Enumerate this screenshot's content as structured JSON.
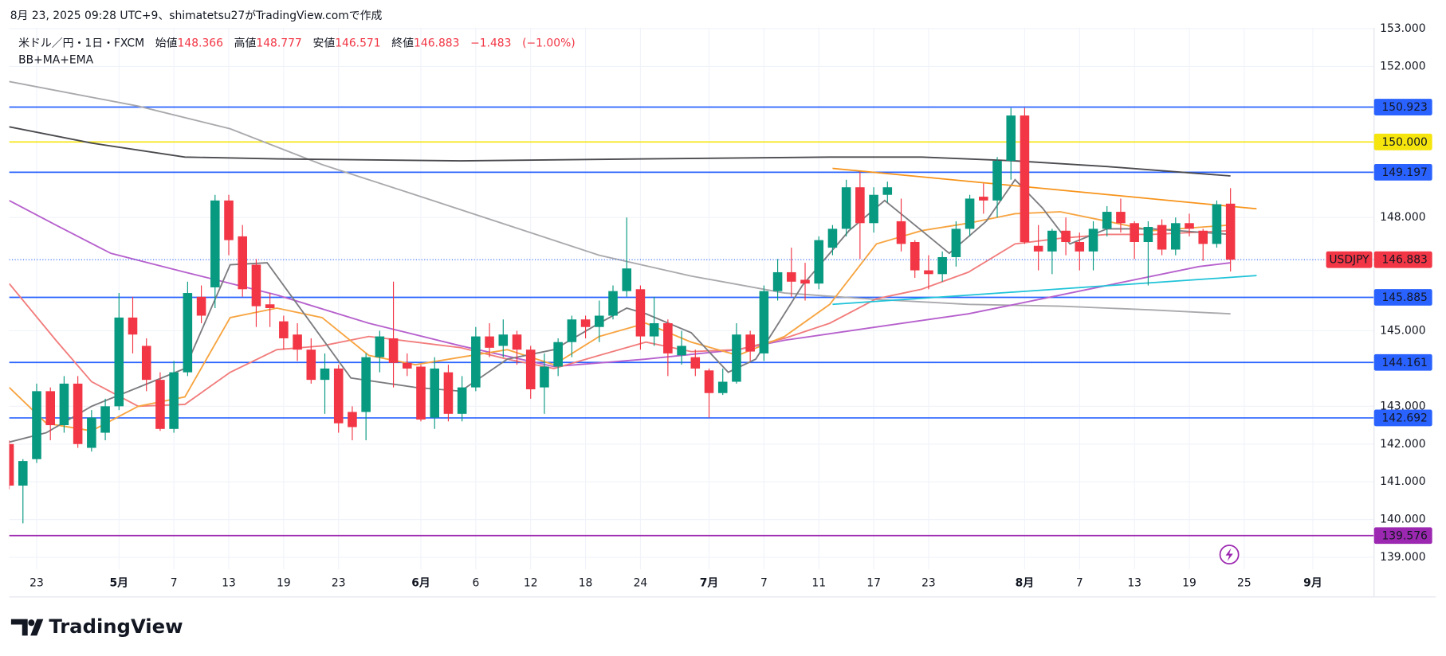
{
  "header": {
    "created": "8月 23, 2025 09:28 UTC+9、shimatetsu27がTradingView.comで作成"
  },
  "footer": {
    "brand": "TradingView"
  },
  "chart_data": {
    "type": "candlestick",
    "symbol_title": "米ドル／円・1日・FXCM",
    "indicators": "BB+MA+EMA",
    "ohlc": {
      "open_label": "始値",
      "open": 148.366,
      "high_label": "高値",
      "high": 148.777,
      "low_label": "安値",
      "low": 146.571,
      "close_label": "終値",
      "close": 146.883,
      "change": {
        "value": -1.483,
        "label": "−1.483"
      },
      "change_pct": {
        "value": -1.0,
        "label": "(−1.00%)"
      }
    },
    "categories": [
      null,
      null,
      "23",
      null,
      null,
      null,
      null,
      null,
      "5月",
      null,
      null,
      null,
      "7",
      null,
      null,
      null,
      "13",
      null,
      null,
      null,
      "19",
      null,
      null,
      null,
      "23",
      null,
      null,
      null,
      null,
      null,
      "6月",
      null,
      null,
      null,
      "6",
      null,
      null,
      null,
      "12",
      null,
      null,
      null,
      "18",
      null,
      null,
      null,
      "24",
      null,
      null,
      null,
      null,
      "7月",
      null,
      null,
      null,
      "7",
      null,
      null,
      null,
      "11",
      null,
      null,
      null,
      "17",
      null,
      null,
      null,
      "23",
      null,
      null,
      null,
      null,
      null,
      null,
      "8月",
      null,
      null,
      null,
      "7",
      null,
      null,
      null,
      "13",
      null,
      null,
      null,
      "19",
      null,
      null,
      null,
      "25",
      null,
      null,
      null,
      null,
      "9月"
    ],
    "open": [
      142.0,
      140.9,
      141.6,
      143.4,
      142.5,
      143.6,
      141.9,
      142.3,
      143.0,
      145.35,
      144.6,
      143.7,
      142.4,
      143.9,
      145.9,
      146.15,
      148.45,
      147.5,
      146.75,
      145.7,
      145.25,
      144.9,
      144.5,
      143.7,
      144.0,
      142.85,
      142.85,
      144.3,
      144.8,
      144.15,
      144.05,
      142.7,
      143.9,
      142.8,
      143.5,
      144.85,
      144.6,
      144.9,
      144.5,
      143.5,
      144.05,
      144.7,
      145.3,
      145.1,
      145.4,
      146.05,
      146.1,
      144.85,
      145.2,
      144.35,
      144.3,
      143.95,
      143.35,
      143.65,
      144.9,
      144.4,
      146.05,
      146.55,
      146.35,
      146.25,
      147.2,
      147.7,
      148.8,
      147.85,
      148.6,
      147.9,
      147.35,
      146.6,
      146.5,
      146.95,
      147.7,
      148.55,
      148.45,
      149.5,
      150.7,
      147.25,
      147.1,
      147.65,
      147.35,
      147.1,
      147.7,
      148.15,
      147.85,
      147.35,
      147.8,
      147.15,
      147.85,
      147.65,
      147.3,
      148.366,
      null,
      null,
      null,
      null,
      null,
      null
    ],
    "high": [
      142.1,
      141.6,
      143.6,
      143.5,
      143.8,
      143.8,
      142.9,
      143.2,
      146.0,
      145.9,
      144.8,
      143.9,
      144.2,
      146.3,
      146.2,
      148.6,
      148.6,
      147.8,
      146.9,
      146.0,
      145.4,
      145.2,
      144.8,
      144.4,
      144.1,
      143.0,
      144.4,
      145.0,
      146.3,
      144.4,
      144.1,
      144.3,
      144.1,
      143.8,
      145.1,
      145.2,
      145.3,
      145.0,
      144.6,
      144.4,
      144.8,
      145.4,
      145.4,
      145.8,
      146.2,
      148.0,
      146.2,
      145.9,
      145.3,
      145.0,
      144.5,
      144.0,
      144.0,
      145.2,
      145.0,
      146.2,
      146.9,
      147.2,
      146.8,
      147.5,
      147.8,
      149.0,
      149.2,
      148.8,
      148.95,
      148.5,
      147.4,
      147.0,
      147.1,
      147.9,
      148.6,
      148.9,
      149.6,
      150.9,
      150.9,
      147.8,
      147.7,
      148.0,
      147.6,
      147.9,
      148.3,
      148.5,
      147.9,
      147.9,
      147.95,
      148.0,
      148.1,
      147.7,
      148.45,
      148.777,
      null,
      null,
      null,
      null,
      null,
      null
    ],
    "low": [
      140.8,
      139.9,
      141.5,
      142.1,
      142.3,
      141.9,
      141.8,
      142.1,
      142.9,
      144.4,
      143.4,
      142.35,
      142.3,
      143.8,
      145.2,
      145.6,
      147.0,
      145.9,
      145.1,
      145.1,
      144.5,
      144.2,
      143.6,
      142.8,
      142.3,
      142.1,
      142.1,
      143.9,
      143.5,
      143.8,
      142.6,
      142.4,
      142.6,
      142.6,
      143.4,
      144.3,
      144.3,
      144.1,
      143.2,
      142.8,
      143.8,
      144.3,
      144.8,
      144.7,
      145.3,
      145.9,
      144.5,
      144.6,
      143.8,
      144.1,
      143.8,
      142.7,
      143.3,
      143.6,
      144.2,
      144.2,
      145.8,
      145.9,
      145.8,
      146.1,
      147.0,
      147.5,
      146.9,
      147.6,
      148.4,
      147.1,
      146.4,
      146.1,
      146.3,
      146.7,
      147.5,
      148.1,
      148.0,
      149.0,
      147.3,
      146.6,
      146.5,
      147.0,
      146.6,
      146.6,
      147.5,
      147.6,
      146.9,
      146.2,
      147.0,
      147.0,
      147.5,
      146.85,
      147.2,
      146.571,
      null,
      null,
      null,
      null,
      null,
      null
    ],
    "close": [
      140.9,
      141.55,
      143.4,
      142.5,
      143.6,
      142.0,
      142.7,
      143.0,
      145.35,
      144.9,
      143.7,
      142.4,
      143.9,
      146.0,
      145.4,
      148.45,
      147.4,
      146.1,
      145.65,
      145.6,
      144.8,
      144.5,
      143.7,
      144.0,
      142.55,
      142.45,
      144.3,
      144.85,
      144.15,
      144.0,
      142.65,
      144.0,
      142.8,
      143.5,
      144.85,
      144.55,
      144.9,
      144.5,
      143.45,
      144.05,
      144.7,
      145.3,
      145.1,
      145.4,
      146.05,
      146.65,
      144.85,
      145.2,
      144.4,
      144.6,
      144.0,
      143.35,
      143.65,
      144.9,
      144.45,
      146.05,
      146.55,
      146.3,
      146.25,
      147.4,
      147.7,
      148.8,
      147.85,
      148.6,
      148.8,
      147.3,
      146.6,
      146.5,
      146.95,
      147.7,
      148.5,
      148.45,
      149.5,
      150.7,
      147.35,
      147.1,
      147.65,
      147.35,
      147.1,
      147.7,
      148.15,
      147.85,
      147.35,
      147.75,
      147.15,
      147.85,
      147.7,
      147.3,
      148.35,
      146.883,
      null,
      null,
      null,
      null,
      null,
      null
    ],
    "up_color": "#089981",
    "down_color": "#f23645",
    "overlays": [
      {
        "color": "#a9a9ad",
        "x": [
          0,
          9.4,
          16.1,
          22.8,
          29.6,
          36.3,
          43,
          49.7,
          56.5,
          63.2,
          69.9,
          76.6,
          83.3,
          89
        ],
        "values": [
          151.6,
          150.95,
          150.35,
          149.4,
          148.6,
          147.8,
          147.0,
          146.45,
          146.0,
          145.83,
          145.7,
          145.65,
          145.55,
          145.45
        ]
      },
      {
        "color": "#4a4a4f",
        "x": [
          0,
          6,
          12.8,
          19.5,
          32.9,
          46.4,
          59.8,
          66.5,
          73.3,
          80,
          89
        ],
        "values": [
          150.4,
          149.97,
          149.6,
          149.55,
          149.5,
          149.55,
          149.6,
          149.6,
          149.5,
          149.35,
          149.1
        ]
      },
      {
        "color": "#b660cd",
        "x": [
          0,
          3.4,
          7.4,
          12.8,
          19.5,
          26.2,
          32.9,
          39.7,
          46.4,
          53.1,
          56.5,
          63.2,
          69.9,
          73.3,
          80,
          86.7,
          89
        ],
        "values": [
          148.45,
          147.8,
          147.05,
          146.55,
          145.95,
          145.2,
          144.6,
          144.05,
          144.25,
          144.5,
          144.75,
          145.1,
          145.45,
          145.7,
          146.2,
          146.7,
          146.8
        ]
      },
      {
        "color": "#f27c7c",
        "x": [
          0,
          3.4,
          6,
          9.4,
          12.8,
          16.1,
          19.5,
          22.8,
          26.2,
          29.6,
          32.9,
          36.3,
          39.7,
          43,
          46.4,
          49.7,
          53.1,
          56.5,
          59.8,
          63.2,
          66.5,
          69.9,
          73.3,
          76.6,
          80,
          83.3,
          89
        ],
        "values": [
          146.25,
          144.75,
          143.65,
          143.0,
          143.05,
          143.9,
          144.5,
          144.6,
          144.85,
          144.7,
          144.55,
          144.25,
          144.0,
          144.35,
          144.7,
          144.45,
          144.5,
          144.8,
          145.2,
          145.85,
          146.1,
          146.55,
          147.3,
          147.45,
          147.55,
          147.55,
          147.65
        ]
      },
      {
        "color": "#f7a440",
        "x": [
          0,
          2.7,
          6,
          9.4,
          12.8,
          16.1,
          19.5,
          22.8,
          26.2,
          29.6,
          32.9,
          36.3,
          39.7,
          43,
          46.4,
          49.7,
          53.1,
          56.5,
          59.8,
          63.2,
          66.5,
          69.9,
          73.3,
          76.6,
          80,
          83.3,
          89
        ],
        "values": [
          143.5,
          142.55,
          142.35,
          143.0,
          143.25,
          145.35,
          145.6,
          145.35,
          144.35,
          144.1,
          144.3,
          144.5,
          144.1,
          144.85,
          145.2,
          144.7,
          144.35,
          144.85,
          145.7,
          147.3,
          147.65,
          147.85,
          148.1,
          148.15,
          147.9,
          147.65,
          147.8
        ]
      },
      {
        "color": "#7c7c80",
        "x": [
          0,
          2.7,
          6,
          9.4,
          12.8,
          16.1,
          18.8,
          21.5,
          24.9,
          29.6,
          32.9,
          36.3,
          39.7,
          43,
          45,
          46.4,
          49.7,
          52.4,
          54.4,
          57.8,
          61.2,
          63.8,
          66.5,
          68.5,
          71.2,
          73.3,
          75.3,
          77.3,
          80,
          83.3,
          89
        ],
        "values": [
          142.05,
          142.3,
          143.0,
          143.5,
          144.0,
          146.75,
          146.8,
          145.45,
          143.75,
          143.5,
          143.4,
          144.25,
          144.5,
          145.2,
          145.6,
          145.45,
          144.95,
          143.9,
          144.25,
          146.2,
          147.65,
          148.45,
          147.65,
          147.05,
          147.9,
          149.0,
          148.25,
          147.3,
          147.7,
          147.7,
          147.55
        ]
      }
    ],
    "trendlines": [
      {
        "color": "#f7931a",
        "x": [
          60,
          90.9
        ],
        "values": [
          149.3,
          148.23
        ]
      },
      {
        "color": "#1fc3d8",
        "x": [
          60,
          90.9
        ],
        "values": [
          145.7,
          146.46
        ]
      }
    ],
    "levels": [
      {
        "value": 150.923,
        "color": "#2962ff",
        "text_color": "#ffffff"
      },
      {
        "value": 150.0,
        "label": "150.000",
        "color": "#f5e50c",
        "text_color": "#131722"
      },
      {
        "value": 149.197,
        "color": "#2962ff",
        "text_color": "#ffffff"
      },
      {
        "value": 145.885,
        "color": "#2962ff",
        "text_color": "#ffffff"
      },
      {
        "value": 144.161,
        "color": "#2962ff",
        "text_color": "#ffffff"
      },
      {
        "value": 142.692,
        "color": "#2962ff",
        "text_color": "#ffffff"
      },
      {
        "value": 139.576,
        "color": "#9c27b0",
        "text_color": "#ffffff"
      }
    ],
    "last_price": {
      "symbol": "USDJPY",
      "value": 146.883,
      "color": "#f23645",
      "line_color": "#2962ff"
    },
    "ylim": [
      138.5,
      153.0
    ],
    "yticks": [
      {
        "value": 139,
        "label": "139.000"
      },
      {
        "value": 140,
        "label": "140.000"
      },
      {
        "value": 141,
        "label": "141.000"
      },
      {
        "value": 142,
        "label": "142.000"
      },
      {
        "value": 143,
        "label": "143.000"
      },
      {
        "value": 145,
        "label": "145.000"
      },
      {
        "value": 148,
        "label": "148.000"
      },
      {
        "value": 152,
        "label": "152.000"
      },
      {
        "value": 153,
        "label": "153.000"
      }
    ],
    "grid": true
  }
}
